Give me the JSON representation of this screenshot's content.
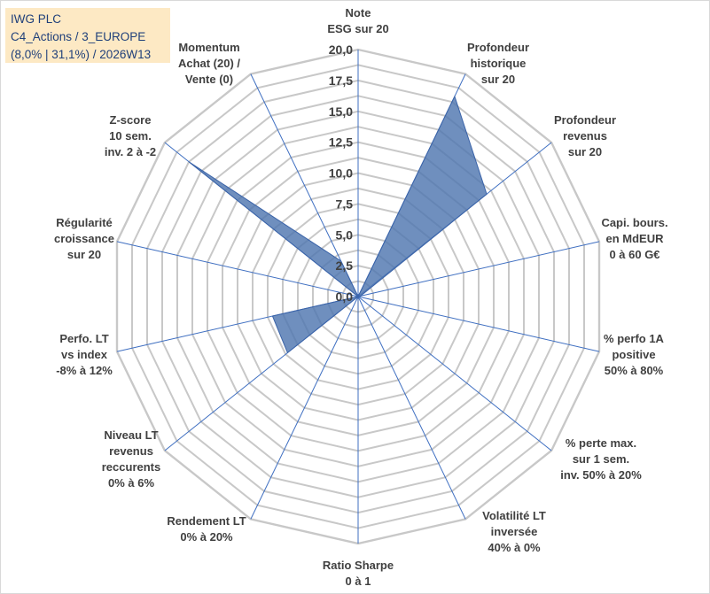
{
  "title_lines": [
    "IWG PLC",
    "C4_Actions / 3_EUROPE",
    "(8,0% | 31,1%) / 2026W13"
  ],
  "chart_data": {
    "type": "radar",
    "rmin": 0,
    "rmax": 20,
    "ticks": [
      "0,0",
      "2,5",
      "5,0",
      "7,5",
      "10,0",
      "12,5",
      "15,0",
      "17,5",
      "20,0"
    ],
    "grid": true,
    "series_color": "#4f76b0",
    "axes": [
      {
        "label": [
          "Note",
          "ESG sur 20"
        ],
        "value": 0
      },
      {
        "label": [
          "Profondeur",
          "historique",
          "sur 20"
        ],
        "value": 18
      },
      {
        "label": [
          "Profondeur",
          "revenus",
          "sur 20"
        ],
        "value": 13.3
      },
      {
        "label": [
          "Capi. bours.",
          "en MdEUR",
          "0 à 60 G€"
        ],
        "value": 0.2
      },
      {
        "label": [
          "% perfo 1A",
          "positive",
          "50% à 80%"
        ],
        "value": 0
      },
      {
        "label": [
          "% perte max.",
          "sur 1 sem.",
          "inv. 50% à 20%"
        ],
        "value": 0
      },
      {
        "label": [
          "Volatilité LT",
          "inversée",
          "40% à 0%"
        ],
        "value": 0
      },
      {
        "label": [
          "Ratio Sharpe",
          "0 à 1"
        ],
        "value": 4.2
      },
      {
        "label": [
          "Rendement LT",
          "0% à 20%"
        ],
        "value": 0
      },
      {
        "label": [
          "Niveau LT",
          "revenus",
          "reccurents",
          "0% à 6%"
        ],
        "value": 7.3
      },
      {
        "label": [
          "Perfo. LT",
          "vs index",
          "-8% à 12%"
        ],
        "value": 7.1
      },
      {
        "label": [
          "Régularité",
          "croissance",
          "sur 20"
        ],
        "value": 0
      },
      {
        "label": [
          "Z-score",
          "10 sem.",
          "inv. 2 à -2"
        ],
        "value": 17.5
      },
      {
        "label": [
          "Momentum",
          "Achat (20) /",
          "Vente (0)"
        ],
        "value": 3.2
      }
    ]
  }
}
